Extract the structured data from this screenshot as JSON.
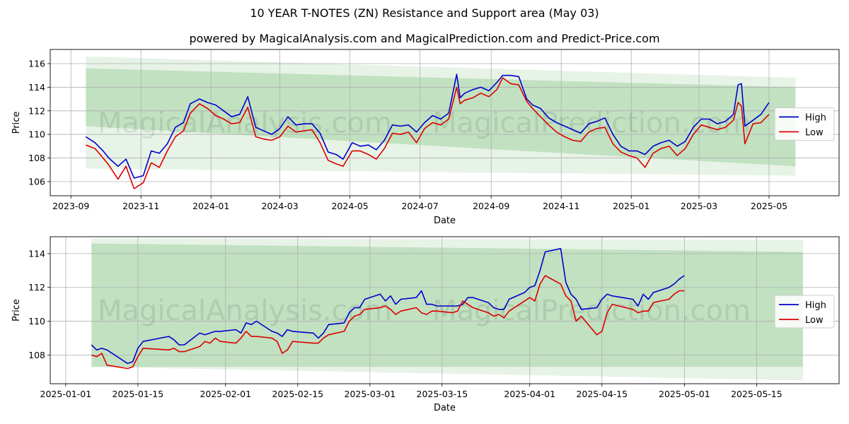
{
  "title": "10 YEAR T-NOTES (ZN) Resistance and Support area (May 03)",
  "subtitle": "powered by MagicalAnalysis.com and MagicalPrediction.com and Predict-Price.com",
  "watermarks": [
    "MagicalAnalysis.com",
    "MagicalPrediction.com"
  ],
  "colors": {
    "high": "#0000cc",
    "low": "#dd0000",
    "band": "#2e9d2e",
    "grid": "#b0b0b0"
  },
  "chart_data": [
    {
      "type": "line",
      "xlabel": "Date",
      "ylabel": "Price",
      "xlim": [
        "2023-08-14",
        "2025-07-01"
      ],
      "ylim": [
        104.8,
        117.2
      ],
      "grid": true,
      "legend_position": "right",
      "x_ticks": [
        "2023-09",
        "2023-11",
        "2024-01",
        "2024-03",
        "2024-05",
        "2024-07",
        "2024-09",
        "2024-11",
        "2025-01",
        "2025-03",
        "2025-05"
      ],
      "y_ticks": [
        106,
        108,
        110,
        112,
        114,
        116
      ],
      "bands": [
        {
          "x": [
            "2023-09-14",
            "2025-05-24"
          ],
          "upper": [
            116.6,
            114.8
          ],
          "lower": [
            107.1,
            106.5
          ],
          "opacity": 0.12
        },
        {
          "x": [
            "2023-09-14",
            "2025-05-24"
          ],
          "upper": [
            115.6,
            114.0
          ],
          "lower": [
            110.7,
            107.3
          ],
          "opacity": 0.2
        }
      ],
      "series": [
        {
          "name": "High",
          "x": [
            "2023-09-14",
            "2023-09-22",
            "2023-09-29",
            "2023-10-04",
            "2023-10-12",
            "2023-10-19",
            "2023-10-26",
            "2023-11-03",
            "2023-11-10",
            "2023-11-17",
            "2023-11-24",
            "2023-12-01",
            "2023-12-08",
            "2023-12-14",
            "2023-12-22",
            "2023-12-29",
            "2024-01-05",
            "2024-01-12",
            "2024-01-19",
            "2024-01-26",
            "2024-02-02",
            "2024-02-09",
            "2024-02-16",
            "2024-02-23",
            "2024-03-01",
            "2024-03-08",
            "2024-03-15",
            "2024-03-22",
            "2024-03-29",
            "2024-04-05",
            "2024-04-12",
            "2024-04-19",
            "2024-04-25",
            "2024-05-03",
            "2024-05-10",
            "2024-05-17",
            "2024-05-24",
            "2024-05-31",
            "2024-06-07",
            "2024-06-14",
            "2024-06-21",
            "2024-06-28",
            "2024-07-05",
            "2024-07-12",
            "2024-07-19",
            "2024-07-26",
            "2024-08-02",
            "2024-08-05",
            "2024-08-09",
            "2024-08-16",
            "2024-08-23",
            "2024-08-30",
            "2024-09-06",
            "2024-09-11",
            "2024-09-18",
            "2024-09-25",
            "2024-10-02",
            "2024-10-07",
            "2024-10-14",
            "2024-10-21",
            "2024-10-28",
            "2024-11-04",
            "2024-11-11",
            "2024-11-18",
            "2024-11-25",
            "2024-12-02",
            "2024-12-09",
            "2024-12-16",
            "2024-12-23",
            "2024-12-30",
            "2025-01-06",
            "2025-01-13",
            "2025-01-20",
            "2025-01-27",
            "2025-02-03",
            "2025-02-10",
            "2025-02-17",
            "2025-02-24",
            "2025-03-03",
            "2025-03-10",
            "2025-03-17",
            "2025-03-24",
            "2025-03-31",
            "2025-04-04",
            "2025-04-07",
            "2025-04-10",
            "2025-04-17",
            "2025-04-24",
            "2025-05-01"
          ],
          "values": [
            109.8,
            109.3,
            108.6,
            108.0,
            107.3,
            107.9,
            106.3,
            106.5,
            108.6,
            108.4,
            109.2,
            110.6,
            111.0,
            112.6,
            113.0,
            112.7,
            112.5,
            112.0,
            111.5,
            111.7,
            113.2,
            110.6,
            110.3,
            110.0,
            110.5,
            111.5,
            110.8,
            110.9,
            110.9,
            110.1,
            108.5,
            108.3,
            107.9,
            109.3,
            109.0,
            109.1,
            108.7,
            109.5,
            110.8,
            110.7,
            110.8,
            110.2,
            111.0,
            111.6,
            111.3,
            111.8,
            115.1,
            113.1,
            113.5,
            113.8,
            114.0,
            113.7,
            114.4,
            115.0,
            115.0,
            114.9,
            113.0,
            112.5,
            112.2,
            111.4,
            111.0,
            110.7,
            110.4,
            110.1,
            110.9,
            111.1,
            111.4,
            110.0,
            109.0,
            108.6,
            108.6,
            108.3,
            109.0,
            109.3,
            109.5,
            109.0,
            109.4,
            110.6,
            111.3,
            111.3,
            110.9,
            111.1,
            111.7,
            114.2,
            114.3,
            110.7,
            111.2,
            111.7,
            112.7
          ]
        },
        {
          "name": "Low",
          "x": [
            "2023-09-14",
            "2023-09-22",
            "2023-09-29",
            "2023-10-04",
            "2023-10-12",
            "2023-10-19",
            "2023-10-26",
            "2023-11-03",
            "2023-11-10",
            "2023-11-17",
            "2023-11-24",
            "2023-12-01",
            "2023-12-08",
            "2023-12-14",
            "2023-12-22",
            "2023-12-29",
            "2024-01-05",
            "2024-01-12",
            "2024-01-19",
            "2024-01-26",
            "2024-02-02",
            "2024-02-09",
            "2024-02-16",
            "2024-02-23",
            "2024-03-01",
            "2024-03-08",
            "2024-03-15",
            "2024-03-22",
            "2024-03-29",
            "2024-04-05",
            "2024-04-12",
            "2024-04-19",
            "2024-04-25",
            "2024-05-03",
            "2024-05-10",
            "2024-05-17",
            "2024-05-24",
            "2024-05-31",
            "2024-06-07",
            "2024-06-14",
            "2024-06-21",
            "2024-06-28",
            "2024-07-05",
            "2024-07-12",
            "2024-07-19",
            "2024-07-26",
            "2024-08-02",
            "2024-08-05",
            "2024-08-09",
            "2024-08-16",
            "2024-08-23",
            "2024-08-30",
            "2024-09-06",
            "2024-09-11",
            "2024-09-18",
            "2024-09-25",
            "2024-10-02",
            "2024-10-07",
            "2024-10-14",
            "2024-10-21",
            "2024-10-28",
            "2024-11-04",
            "2024-11-11",
            "2024-11-18",
            "2024-11-25",
            "2024-12-02",
            "2024-12-09",
            "2024-12-16",
            "2024-12-23",
            "2024-12-30",
            "2025-01-06",
            "2025-01-13",
            "2025-01-20",
            "2025-01-27",
            "2025-02-03",
            "2025-02-10",
            "2025-02-17",
            "2025-02-24",
            "2025-03-03",
            "2025-03-10",
            "2025-03-17",
            "2025-03-24",
            "2025-03-31",
            "2025-04-04",
            "2025-04-07",
            "2025-04-10",
            "2025-04-17",
            "2025-04-24",
            "2025-05-01"
          ],
          "values": [
            109.1,
            108.8,
            108.0,
            107.4,
            106.2,
            107.3,
            105.4,
            105.9,
            107.6,
            107.2,
            108.6,
            109.8,
            110.3,
            111.8,
            112.6,
            112.2,
            111.6,
            111.3,
            110.9,
            111.0,
            112.3,
            109.8,
            109.6,
            109.5,
            109.8,
            110.7,
            110.2,
            110.3,
            110.4,
            109.3,
            107.8,
            107.5,
            107.3,
            108.6,
            108.6,
            108.3,
            107.9,
            108.8,
            110.1,
            110.0,
            110.2,
            109.3,
            110.5,
            111.0,
            110.8,
            111.3,
            114.0,
            112.6,
            112.9,
            113.1,
            113.5,
            113.2,
            113.8,
            114.8,
            114.3,
            114.2,
            112.8,
            112.2,
            111.5,
            110.8,
            110.2,
            109.8,
            109.5,
            109.4,
            110.2,
            110.5,
            110.6,
            109.2,
            108.5,
            108.2,
            108.0,
            107.2,
            108.4,
            108.8,
            109.0,
            108.2,
            108.8,
            110.0,
            110.8,
            110.6,
            110.4,
            110.6,
            111.2,
            112.7,
            112.4,
            109.2,
            110.9,
            111.0,
            111.7
          ]
        }
      ]
    },
    {
      "type": "line",
      "xlabel": "Date",
      "ylabel": "Price",
      "xlim": [
        "2024-12-29",
        "2025-05-31"
      ],
      "ylim": [
        106.3,
        115.0
      ],
      "grid": true,
      "legend_position": "right",
      "x_ticks": [
        "2025-01-01",
        "2025-01-15",
        "2025-02-01",
        "2025-02-15",
        "2025-03-01",
        "2025-03-15",
        "2025-04-01",
        "2025-04-15",
        "2025-05-01",
        "2025-05-15"
      ],
      "y_ticks": [
        108,
        110,
        112,
        114
      ],
      "bands": [
        {
          "x": [
            "2025-01-06",
            "2025-05-24"
          ],
          "upper": [
            114.9,
            114.8
          ],
          "lower": [
            107.3,
            106.5
          ],
          "opacity": 0.12
        },
        {
          "x": [
            "2025-01-06",
            "2025-05-24"
          ],
          "upper": [
            114.6,
            114.1
          ],
          "lower": [
            107.3,
            107.3
          ],
          "opacity": 0.2
        }
      ],
      "series": [
        {
          "name": "High",
          "x": [
            "2025-01-06",
            "2025-01-07",
            "2025-01-08",
            "2025-01-09",
            "2025-01-13",
            "2025-01-14",
            "2025-01-15",
            "2025-01-16",
            "2025-01-21",
            "2025-01-22",
            "2025-01-23",
            "2025-01-24",
            "2025-01-27",
            "2025-01-28",
            "2025-01-29",
            "2025-01-30",
            "2025-01-31",
            "2025-02-03",
            "2025-02-04",
            "2025-02-05",
            "2025-02-06",
            "2025-02-07",
            "2025-02-10",
            "2025-02-11",
            "2025-02-12",
            "2025-02-13",
            "2025-02-14",
            "2025-02-18",
            "2025-02-19",
            "2025-02-20",
            "2025-02-21",
            "2025-02-24",
            "2025-02-25",
            "2025-02-26",
            "2025-02-27",
            "2025-02-28",
            "2025-03-03",
            "2025-03-04",
            "2025-03-05",
            "2025-03-06",
            "2025-03-07",
            "2025-03-10",
            "2025-03-11",
            "2025-03-12",
            "2025-03-13",
            "2025-03-14",
            "2025-03-17",
            "2025-03-18",
            "2025-03-19",
            "2025-03-20",
            "2025-03-21",
            "2025-03-24",
            "2025-03-25",
            "2025-03-26",
            "2025-03-27",
            "2025-03-28",
            "2025-03-31",
            "2025-04-01",
            "2025-04-02",
            "2025-04-03",
            "2025-04-04",
            "2025-04-07",
            "2025-04-08",
            "2025-04-09",
            "2025-04-10",
            "2025-04-11",
            "2025-04-14",
            "2025-04-15",
            "2025-04-16",
            "2025-04-17",
            "2025-04-21",
            "2025-04-22",
            "2025-04-23",
            "2025-04-24",
            "2025-04-25",
            "2025-04-28",
            "2025-04-29",
            "2025-04-30",
            "2025-05-01"
          ],
          "values": [
            108.6,
            108.3,
            108.4,
            108.3,
            107.5,
            107.6,
            108.4,
            108.8,
            109.1,
            108.9,
            108.6,
            108.6,
            109.3,
            109.2,
            109.3,
            109.4,
            109.4,
            109.5,
            109.3,
            109.9,
            109.8,
            110.0,
            109.4,
            109.3,
            109.1,
            109.5,
            109.4,
            109.3,
            109.0,
            109.3,
            109.8,
            109.9,
            110.5,
            110.8,
            110.8,
            111.3,
            111.6,
            111.2,
            111.5,
            111.0,
            111.3,
            111.4,
            111.8,
            111.0,
            111.0,
            110.9,
            110.9,
            110.9,
            111.0,
            111.4,
            111.4,
            111.1,
            110.8,
            110.7,
            110.7,
            111.3,
            111.7,
            112.0,
            112.1,
            113.0,
            114.1,
            114.3,
            112.3,
            111.6,
            111.3,
            110.7,
            110.8,
            111.3,
            111.6,
            111.5,
            111.3,
            110.9,
            111.6,
            111.3,
            111.7,
            112.0,
            112.2,
            112.5,
            112.7
          ]
        },
        {
          "name": "Low",
          "x": [
            "2025-01-06",
            "2025-01-07",
            "2025-01-08",
            "2025-01-09",
            "2025-01-13",
            "2025-01-14",
            "2025-01-15",
            "2025-01-16",
            "2025-01-21",
            "2025-01-22",
            "2025-01-23",
            "2025-01-24",
            "2025-01-27",
            "2025-01-28",
            "2025-01-29",
            "2025-01-30",
            "2025-01-31",
            "2025-02-03",
            "2025-02-04",
            "2025-02-05",
            "2025-02-06",
            "2025-02-07",
            "2025-02-10",
            "2025-02-11",
            "2025-02-12",
            "2025-02-13",
            "2025-02-14",
            "2025-02-18",
            "2025-02-19",
            "2025-02-20",
            "2025-02-21",
            "2025-02-24",
            "2025-02-25",
            "2025-02-26",
            "2025-02-27",
            "2025-02-28",
            "2025-03-03",
            "2025-03-04",
            "2025-03-05",
            "2025-03-06",
            "2025-03-07",
            "2025-03-10",
            "2025-03-11",
            "2025-03-12",
            "2025-03-13",
            "2025-03-14",
            "2025-03-17",
            "2025-03-18",
            "2025-03-19",
            "2025-03-20",
            "2025-03-21",
            "2025-03-24",
            "2025-03-25",
            "2025-03-26",
            "2025-03-27",
            "2025-03-28",
            "2025-03-31",
            "2025-04-01",
            "2025-04-02",
            "2025-04-03",
            "2025-04-04",
            "2025-04-07",
            "2025-04-08",
            "2025-04-09",
            "2025-04-10",
            "2025-04-11",
            "2025-04-14",
            "2025-04-15",
            "2025-04-16",
            "2025-04-17",
            "2025-04-21",
            "2025-04-22",
            "2025-04-23",
            "2025-04-24",
            "2025-04-25",
            "2025-04-28",
            "2025-04-29",
            "2025-04-30",
            "2025-05-01"
          ],
          "values": [
            108.0,
            107.9,
            108.1,
            107.4,
            107.2,
            107.3,
            107.9,
            108.4,
            108.3,
            108.4,
            108.2,
            108.2,
            108.5,
            108.8,
            108.7,
            109.0,
            108.8,
            108.7,
            109.0,
            109.4,
            109.1,
            109.1,
            109.0,
            108.8,
            108.1,
            108.3,
            108.8,
            108.7,
            108.7,
            109.0,
            109.2,
            109.4,
            110.0,
            110.3,
            110.4,
            110.7,
            110.8,
            110.9,
            110.7,
            110.4,
            110.6,
            110.8,
            110.5,
            110.4,
            110.6,
            110.6,
            110.5,
            110.6,
            111.2,
            111.0,
            110.8,
            110.5,
            110.3,
            110.4,
            110.2,
            110.6,
            111.2,
            111.4,
            111.2,
            112.2,
            112.7,
            112.2,
            111.5,
            111.2,
            110.0,
            110.3,
            109.2,
            109.4,
            110.5,
            111.0,
            110.7,
            110.5,
            110.6,
            110.6,
            111.1,
            111.3,
            111.6,
            111.8,
            111.8
          ]
        }
      ]
    }
  ]
}
